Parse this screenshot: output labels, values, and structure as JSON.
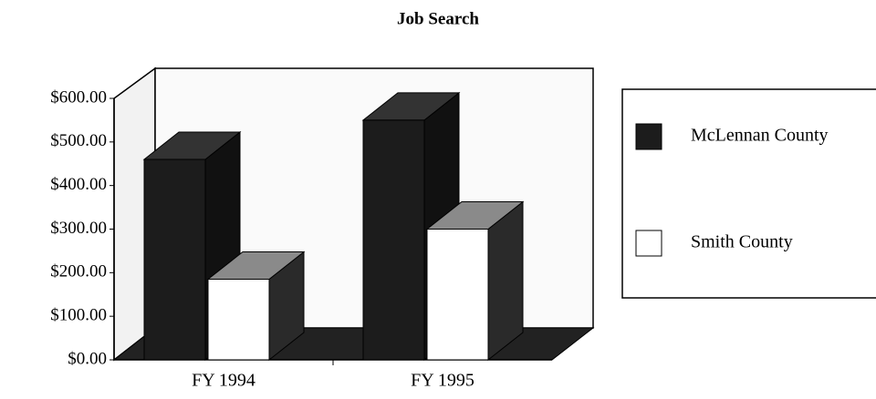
{
  "chart_data": {
    "type": "bar",
    "title": "Job Search",
    "categories": [
      "FY 1994",
      "FY 1995"
    ],
    "series": [
      {
        "name": "McLennan County",
        "color": "#1c1c1c",
        "values": [
          460,
          550
        ]
      },
      {
        "name": "Smith County",
        "color": "#ffffff",
        "values": [
          185,
          300
        ]
      }
    ],
    "ylim": [
      0,
      600
    ],
    "yticks": [
      {
        "value": 0,
        "label": "$0.00"
      },
      {
        "value": 100,
        "label": "$100.00"
      },
      {
        "value": 200,
        "label": "$200.00"
      },
      {
        "value": 300,
        "label": "$300.00"
      },
      {
        "value": 400,
        "label": "$400.00"
      },
      {
        "value": 500,
        "label": "$500.00"
      },
      {
        "value": 600,
        "label": "$600.00"
      }
    ],
    "legend": "right"
  }
}
